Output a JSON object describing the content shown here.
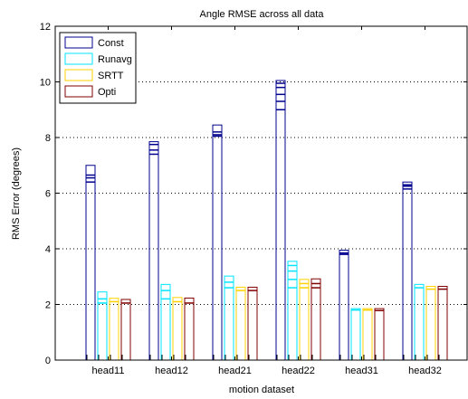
{
  "chart_data": {
    "type": "bar",
    "title": "Angle RMSE across all data",
    "xlabel": "motion dataset",
    "ylabel": "RMS Error (degrees)",
    "ylim": [
      0,
      12
    ],
    "yticks": [
      0,
      2,
      4,
      6,
      8,
      10,
      12
    ],
    "grid": "y-dotted",
    "legend_position": "top-left",
    "categories": [
      "head11",
      "head12",
      "head21",
      "head22",
      "head31",
      "head32"
    ],
    "series": [
      {
        "name": "Const",
        "color": "#00008F",
        "values": [
          7.0,
          7.85,
          8.45,
          10.05,
          3.95,
          6.4
        ],
        "internal_lines": [
          [
            6.65,
            6.55,
            6.4
          ],
          [
            7.75,
            7.55,
            7.4
          ],
          [
            8.2,
            8.1,
            8.05
          ],
          [
            9.95,
            9.8,
            9.55,
            9.3,
            9.0
          ],
          [
            3.85,
            3.8
          ],
          [
            6.3,
            6.25,
            6.15
          ]
        ]
      },
      {
        "name": "Runavg",
        "color": "#00E5FF",
        "values": [
          2.45,
          2.72,
          3.02,
          3.55,
          1.85,
          2.72
        ],
        "internal_lines": [
          [
            2.2,
            2.05
          ],
          [
            2.5,
            2.2
          ],
          [
            2.8,
            2.6
          ],
          [
            3.4,
            3.2,
            2.9,
            2.6
          ],
          [
            1.8
          ],
          [
            2.6
          ]
        ]
      },
      {
        "name": "SRTT",
        "color": "#FFD000",
        "values": [
          2.22,
          2.25,
          2.62,
          2.9,
          1.85,
          2.65
        ],
        "internal_lines": [
          [
            2.1
          ],
          [
            2.1
          ],
          [
            2.5
          ],
          [
            2.75,
            2.6
          ],
          [
            1.8
          ],
          [
            2.55
          ]
        ]
      },
      {
        "name": "Opti",
        "color": "#800000",
        "values": [
          2.18,
          2.23,
          2.62,
          2.92,
          1.85,
          2.65
        ],
        "internal_lines": [
          [
            2.05
          ],
          [
            2.05
          ],
          [
            2.5
          ],
          [
            2.75,
            2.6
          ],
          [
            1.78
          ],
          [
            2.55
          ]
        ]
      }
    ]
  }
}
